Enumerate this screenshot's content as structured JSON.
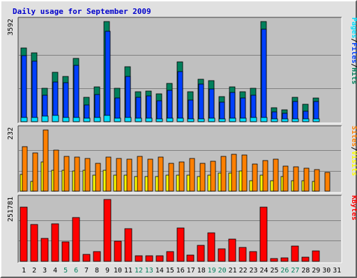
{
  "chart_data": {
    "type": "bar",
    "title": "Daily usage for September 2009",
    "days": [
      "1",
      "2",
      "3",
      "4",
      "5",
      "6",
      "7",
      "8",
      "9",
      "10",
      "11",
      "12",
      "13",
      "14",
      "15",
      "16",
      "17",
      "18",
      "19",
      "20",
      "21",
      "22",
      "23",
      "24",
      "25",
      "26",
      "27",
      "28",
      "29",
      "30",
      "31"
    ],
    "weekend_days": [
      "5",
      "6",
      "12",
      "13",
      "19",
      "20",
      "26",
      "27"
    ],
    "colors": {
      "title": "#0000cc",
      "background": "#c0c0c0",
      "hits": "#00805c",
      "files": "#0040ff",
      "pages": "#00e0ff",
      "visits": "#ffff00",
      "sites": "#ff8000",
      "kbytes": "#ff0000",
      "weekend_label": "#00805c"
    },
    "panels": [
      {
        "name": "hits-files-pages",
        "ymax_label": "3592",
        "ymax": 3592,
        "legend": [
          {
            "text": "Pages",
            "color": "#00e0ff"
          },
          {
            "text": "/",
            "color": "#000000"
          },
          {
            "text": "Files",
            "color": "#0040ff"
          },
          {
            "text": "/",
            "color": "#000000"
          },
          {
            "text": "Hits",
            "color": "#00805c"
          }
        ],
        "series": [
          {
            "name": "Hits",
            "color": "#00805c",
            "values": [
              2650,
              2460,
              1200,
              1770,
              1620,
              2270,
              870,
              1250,
              3592,
              1200,
              1980,
              1070,
              1100,
              1000,
              1370,
              2140,
              1080,
              1520,
              1460,
              890,
              1250,
              1080,
              1200,
              3592,
              490,
              430,
              870,
              620,
              860,
              null,
              null
            ]
          },
          {
            "name": "Files",
            "color": "#0040ff",
            "values": [
              2360,
              2170,
              960,
              1410,
              1400,
              2020,
              600,
              970,
              3240,
              850,
              1630,
              870,
              920,
              760,
              1130,
              1800,
              780,
              1340,
              1170,
              690,
              1050,
              860,
              940,
              3320,
              360,
              290,
              730,
              380,
              720,
              null,
              null
            ]
          },
          {
            "name": "Pages",
            "color": "#00e0ff",
            "values": [
              150,
              150,
              200,
              230,
              150,
              150,
              120,
              150,
              220,
              130,
              150,
              120,
              130,
              110,
              120,
              130,
              110,
              110,
              120,
              110,
              130,
              120,
              140,
              150,
              100,
              90,
              100,
              100,
              100,
              null,
              null
            ]
          }
        ]
      },
      {
        "name": "visits-sites",
        "ymax_label": "232",
        "ymax": 232,
        "legend": [
          {
            "text": "Sites",
            "color": "#ff8000"
          },
          {
            "text": "/",
            "color": "#000000"
          },
          {
            "text": "Visits",
            "color": "#ffff00"
          }
        ],
        "series": [
          {
            "name": "Visits",
            "color": "#ffff00",
            "values": [
              62,
              36,
              112,
              80,
              80,
              76,
              80,
              60,
              80,
              60,
              60,
              56,
              56,
              56,
              60,
              60,
              60,
              56,
              60,
              68,
              68,
              76,
              40,
              60,
              40,
              56,
              40,
              40,
              36,
              null,
              null
            ]
          },
          {
            "name": "Sites",
            "color": "#ff8000",
            "values": [
              170,
              145,
              232,
              155,
              132,
              128,
              125,
              106,
              128,
              125,
              120,
              132,
              120,
              128,
              106,
              110,
              124,
              106,
              114,
              132,
              140,
              136,
              104,
              116,
              120,
              95,
              92,
              88,
              82,
              72,
              null
            ]
          }
        ]
      },
      {
        "name": "kbytes",
        "ymax_label": "251781",
        "ymax": 251781,
        "legend": [
          {
            "text": "KBytes",
            "color": "#ff0000"
          }
        ],
        "series": [
          {
            "name": "KBytes",
            "color": "#ff0000",
            "values": [
              221000,
              151000,
              93000,
              153000,
              78000,
              177000,
              27000,
              40000,
              251781,
              82000,
              134000,
              23000,
              23000,
              22000,
              40000,
              137000,
              25000,
              65000,
              117000,
              50000,
              90000,
              56000,
              41000,
              221000,
              11000,
              13000,
              61000,
              18000,
              42000,
              null,
              null
            ]
          }
        ]
      }
    ]
  }
}
